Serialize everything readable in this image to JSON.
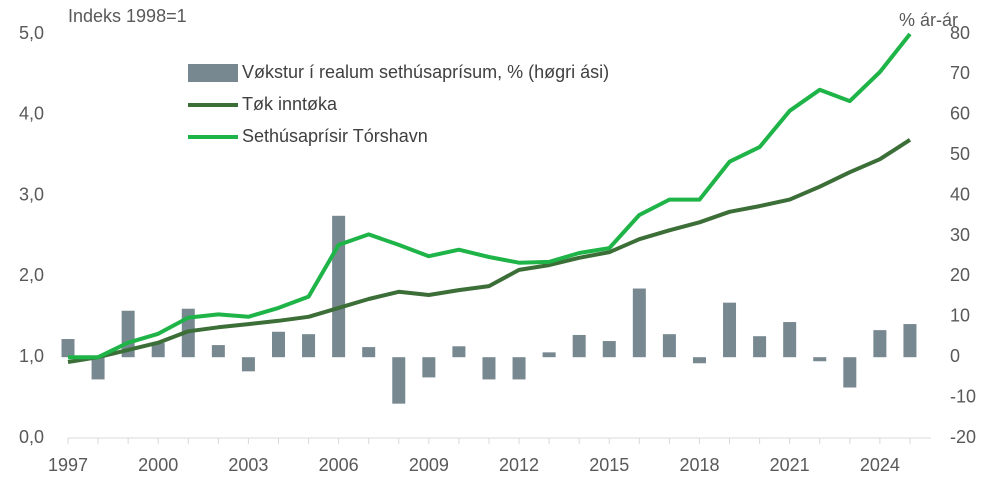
{
  "chart_data": {
    "type": "bar_line",
    "left_axis_label": "Indeks 1998=1",
    "right_axis_label": "% ár-ár",
    "x": [
      1997,
      1998,
      1999,
      2000,
      2001,
      2002,
      2003,
      2004,
      2005,
      2006,
      2007,
      2008,
      2009,
      2010,
      2011,
      2012,
      2013,
      2014,
      2015,
      2016,
      2017,
      2018,
      2019,
      2020,
      2021,
      2022,
      2023,
      2024,
      2025
    ],
    "series": [
      {
        "name": "Vøkstur í realum sethúsaprísum, % (høgri ási)",
        "color": "#778891",
        "kind": "bar",
        "axis": "y2",
        "values": [
          4.5,
          -5.5,
          11.5,
          3.5,
          12,
          3,
          -3.5,
          6.3,
          5.7,
          35,
          2.5,
          -11.5,
          -5,
          2.7,
          -5.5,
          -5.5,
          1.2,
          5.5,
          4,
          17,
          5.7,
          -1.5,
          13.5,
          5.2,
          8.7,
          -1,
          -7.5,
          6.7,
          8.2
        ]
      },
      {
        "name": "Tøk inntøka",
        "color": "#3c6e38",
        "kind": "line",
        "values": [
          0.94,
          1.0,
          1.09,
          1.18,
          1.32,
          1.37,
          1.41,
          1.45,
          1.5,
          1.61,
          1.72,
          1.81,
          1.77,
          1.83,
          1.88,
          2.08,
          2.14,
          2.23,
          2.3,
          2.46,
          2.57,
          2.67,
          2.8,
          2.87,
          2.95,
          3.11,
          3.29,
          3.45,
          3.69
        ]
      },
      {
        "name": "Sethúsaprísir Tórshavn",
        "color": "#1fb448",
        "kind": "line",
        "values": [
          1.0,
          1.0,
          1.18,
          1.29,
          1.49,
          1.53,
          1.5,
          1.61,
          1.75,
          2.39,
          2.52,
          2.39,
          2.25,
          2.33,
          2.24,
          2.17,
          2.18,
          2.29,
          2.35,
          2.76,
          2.95,
          2.95,
          3.42,
          3.6,
          4.05,
          4.31,
          4.17,
          4.53,
          5.0
        ]
      }
    ],
    "xlim": [
      1997,
      2025.7
    ],
    "xticks": [
      1997,
      2000,
      2003,
      2006,
      2009,
      2012,
      2015,
      2018,
      2021,
      2024
    ],
    "ylim": [
      0,
      5
    ],
    "yticks": [
      {
        "value": 0,
        "label": "0,0"
      },
      {
        "value": 1,
        "label": "1,0"
      },
      {
        "value": 2,
        "label": "2,0"
      },
      {
        "value": 3,
        "label": "3,0"
      },
      {
        "value": 4,
        "label": "4,0"
      },
      {
        "value": 5,
        "label": "5,0"
      }
    ],
    "y2lim": [
      -20,
      80
    ],
    "y2ticks": [
      -20,
      -10,
      0,
      10,
      20,
      30,
      40,
      50,
      60,
      70,
      80
    ]
  }
}
